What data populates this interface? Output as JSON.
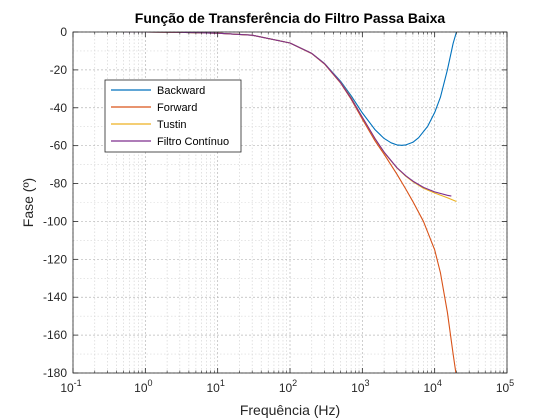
{
  "chart_data": {
    "type": "line",
    "title": "Função de Transferência do Filtro Passa Baixa",
    "xlabel": "Frequência (Hz)",
    "ylabel": "Fase (º)",
    "xscale": "log",
    "xlim": [
      0.1,
      100000
    ],
    "ylim": [
      -180,
      0
    ],
    "grid": "on (major and minor)",
    "legend_position": "upper-left",
    "x_ticks": [
      {
        "value": 0.1,
        "base": "10",
        "exp": "-1"
      },
      {
        "value": 1,
        "base": "10",
        "exp": "0"
      },
      {
        "value": 10,
        "base": "10",
        "exp": "1"
      },
      {
        "value": 100,
        "base": "10",
        "exp": "2"
      },
      {
        "value": 1000,
        "base": "10",
        "exp": "3"
      },
      {
        "value": 10000,
        "base": "10",
        "exp": "4"
      },
      {
        "value": 100000,
        "base": "10",
        "exp": "5"
      }
    ],
    "y_ticks": [
      0,
      -20,
      -40,
      -60,
      -80,
      -100,
      -120,
      -140,
      -160,
      -180
    ],
    "series": [
      {
        "name": "Backward",
        "color": "#0072BD",
        "x": [
          0.5,
          1,
          3,
          10,
          30,
          100,
          200,
          300,
          500,
          700,
          1000,
          1500,
          2000,
          2500,
          3000,
          3500,
          4000,
          5000,
          6000,
          8000,
          10000,
          12000,
          15000,
          18000,
          20000
        ],
        "y": [
          0,
          0,
          -0.2,
          -0.6,
          -1.7,
          -5.8,
          -11.3,
          -16.6,
          -26.0,
          -33.6,
          -42.7,
          -51.6,
          -56.2,
          -58.5,
          -59.6,
          -59.8,
          -59.6,
          -58.2,
          -55.8,
          -49.8,
          -42.5,
          -34.5,
          -20.0,
          -6.0,
          0
        ]
      },
      {
        "name": "Forward",
        "color": "#D95319",
        "x": [
          0.5,
          1,
          3,
          10,
          30,
          100,
          200,
          300,
          500,
          700,
          1000,
          1500,
          2000,
          3000,
          4000,
          5000,
          7000,
          10000,
          12000,
          15000,
          18000,
          20000
        ],
        "y": [
          0,
          0,
          -0.2,
          -0.6,
          -1.7,
          -5.8,
          -11.4,
          -16.9,
          -26.9,
          -35.5,
          -46.0,
          -57.5,
          -64.5,
          -75.0,
          -83.0,
          -89.5,
          -100.0,
          -115.0,
          -127.0,
          -148.0,
          -170.0,
          -182.0
        ]
      },
      {
        "name": "Tustin",
        "color": "#EDB120",
        "x": [
          0.5,
          1,
          3,
          10,
          30,
          100,
          200,
          300,
          500,
          700,
          1000,
          1500,
          2000,
          3000,
          4000,
          5000,
          7000,
          10000,
          15000,
          20000
        ],
        "y": [
          0,
          0,
          -0.2,
          -0.6,
          -1.7,
          -5.8,
          -11.3,
          -16.7,
          -26.5,
          -34.7,
          -45.0,
          -56.3,
          -63.6,
          -71.7,
          -76.2,
          -79.0,
          -82.5,
          -85.0,
          -87.5,
          -89.5
        ]
      },
      {
        "name": "Filtro Contínuo",
        "color": "#7E2F8E",
        "x": [
          0.5,
          1,
          3,
          10,
          30,
          100,
          200,
          300,
          500,
          700,
          1000,
          1500,
          2000,
          3000,
          4000,
          5000,
          7000,
          10000,
          15000,
          17000
        ],
        "y": [
          0,
          0,
          -0.2,
          -0.6,
          -1.7,
          -5.8,
          -11.3,
          -16.7,
          -26.6,
          -35.0,
          -45.0,
          -56.3,
          -63.4,
          -71.6,
          -75.9,
          -78.7,
          -82.0,
          -84.4,
          -86.2,
          -86.6
        ]
      }
    ]
  }
}
